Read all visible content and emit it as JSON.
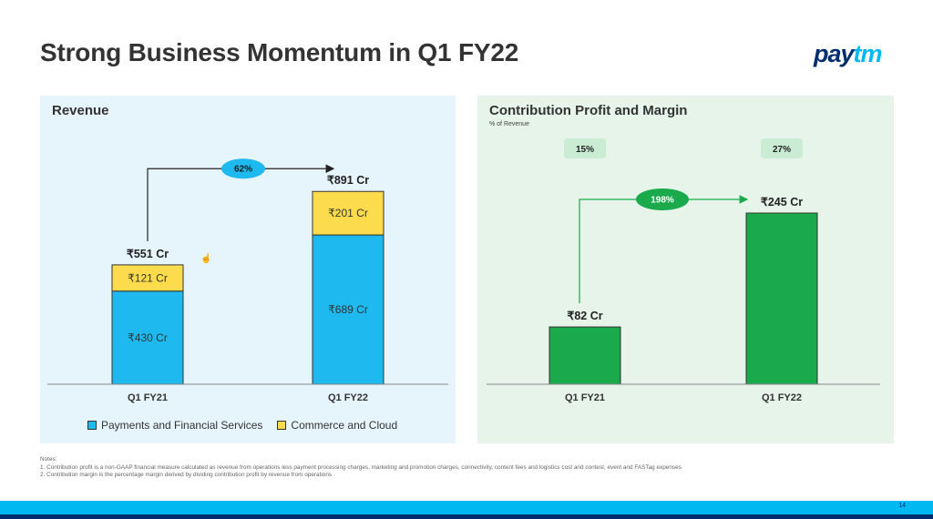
{
  "page": {
    "title": "Strong Business Momentum in Q1 FY22",
    "logo_pay": "pay",
    "logo_tm": "tm",
    "page_number": "14",
    "cursor_icon": "hand-cursor-icon"
  },
  "notes": {
    "heading": "Notes:",
    "lines": [
      "1. Contribution profit is a non-GAAP financial measure calculated as revenue from operations less payment processing charges, marketing and promotion charges, connectivity, content fees and logistics cost and contest, event and FASTag expenses",
      "2. Contribution margin is the percentage margin derived by dividing contribution profit by revenue from operations"
    ]
  },
  "colors": {
    "payments": "#1eb9ee",
    "commerce": "#fcdc4d",
    "profit": "#1aaa4b",
    "pill_blue": "#1eb9ee",
    "pill_green": "#1aaa4b",
    "margin_pill": "#c9ecd3"
  },
  "chart_data": [
    {
      "type": "bar",
      "stacked": true,
      "title": "Revenue",
      "categories": [
        "Q1 FY21",
        "Q1 FY22"
      ],
      "series": [
        {
          "name": "Payments and Financial Services",
          "values": [
            430,
            689
          ],
          "labels": [
            "₹430 Cr",
            "₹689 Cr"
          ]
        },
        {
          "name": "Commerce and Cloud",
          "values": [
            121,
            201
          ],
          "labels": [
            "₹121 Cr",
            "₹201 Cr"
          ]
        }
      ],
      "totals": [
        551,
        891
      ],
      "total_labels": [
        "₹551 Cr",
        "₹891 Cr"
      ],
      "growth_label": "62%",
      "legend": "bottom",
      "ylim": [
        0,
        891
      ]
    },
    {
      "type": "bar",
      "title": "Contribution Profit and Margin",
      "subtitle": "% of Revenue",
      "categories": [
        "Q1 FY21",
        "Q1 FY22"
      ],
      "values": [
        82,
        245
      ],
      "value_labels": [
        "₹82 Cr",
        "₹245 Cr"
      ],
      "margins": [
        "15%",
        "27%"
      ],
      "growth_label": "198%",
      "ylim": [
        0,
        245
      ]
    }
  ]
}
